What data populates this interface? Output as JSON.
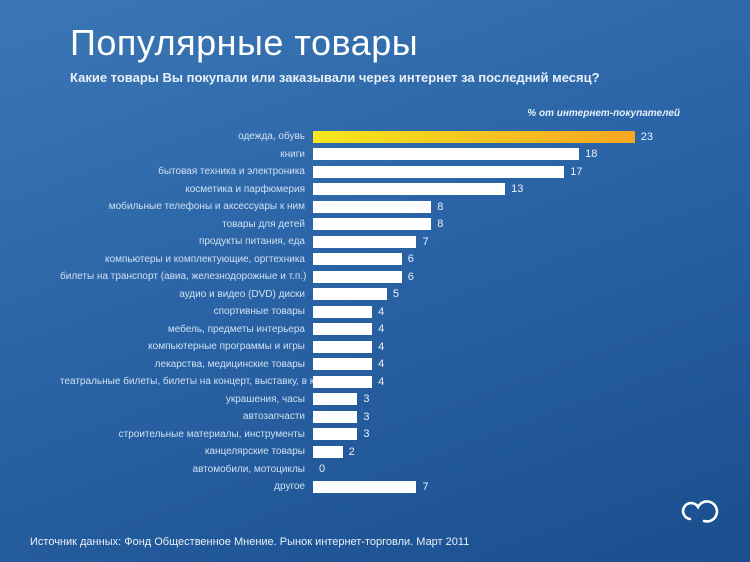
{
  "title": "Популярные товары",
  "subtitle": "Какие товары Вы покупали или заказывали через интернет за последний месяц?",
  "legend": "% от интернет-покупателей",
  "footer": "Источник данных: Фонд Общественное Мнение.  Рынок интернет-торговли. Март 2011",
  "chart": {
    "type": "bar",
    "orientation": "horizontal",
    "xlim": [
      0,
      23
    ],
    "bar_default_color": "#ffffff",
    "bar_highlight_color_start": "#f8e71c",
    "bar_highlight_color_end": "#f5a623",
    "background_color": "#2c66a8",
    "label_color": "#cfe0f2",
    "value_color": "#e8f0f9",
    "title_fontsize": 36,
    "subtitle_fontsize": 13,
    "category_fontsize": 10,
    "value_fontsize": 11,
    "row_height": 17.5,
    "bar_area_width": 340,
    "items": [
      {
        "label": "одежда, обувь",
        "value": 23,
        "highlight": true
      },
      {
        "label": "книги",
        "value": 18,
        "highlight": false
      },
      {
        "label": "бытовая техника и электроника",
        "value": 17,
        "highlight": false
      },
      {
        "label": "косметика и парфюмерия",
        "value": 13,
        "highlight": false
      },
      {
        "label": "мобильные телефоны и аксессуары к ним",
        "value": 8,
        "highlight": false
      },
      {
        "label": "товары для детей",
        "value": 8,
        "highlight": false
      },
      {
        "label": "продукты питания, еда",
        "value": 7,
        "highlight": false
      },
      {
        "label": "компьютеры и комплектующие, оргтехника",
        "value": 6,
        "highlight": false
      },
      {
        "label": "билеты на транспорт (авиа, железнодорожные и т.п.)",
        "value": 6,
        "highlight": false
      },
      {
        "label": "аудио и видео (DVD) диски",
        "value": 5,
        "highlight": false
      },
      {
        "label": "спортивные товары",
        "value": 4,
        "highlight": false
      },
      {
        "label": "мебель, предметы интерьера",
        "value": 4,
        "highlight": false
      },
      {
        "label": "компьютерные программы и игры",
        "value": 4,
        "highlight": false
      },
      {
        "label": "лекарства, медицинские товары",
        "value": 4,
        "highlight": false
      },
      {
        "label": "театральные билеты, билеты на концерт, выставку, в кино",
        "value": 4,
        "highlight": false
      },
      {
        "label": "украшения, часы",
        "value": 3,
        "highlight": false
      },
      {
        "label": "автозапчасти",
        "value": 3,
        "highlight": false
      },
      {
        "label": "строительные материалы, инструменты",
        "value": 3,
        "highlight": false
      },
      {
        "label": "канцелярские товары",
        "value": 2,
        "highlight": false
      },
      {
        "label": "автомобили, мотоциклы",
        "value": 0,
        "highlight": false
      },
      {
        "label": "другое",
        "value": 7,
        "highlight": false
      }
    ]
  },
  "logo": {
    "stroke": "#ffffff",
    "stroke_width": 3
  }
}
